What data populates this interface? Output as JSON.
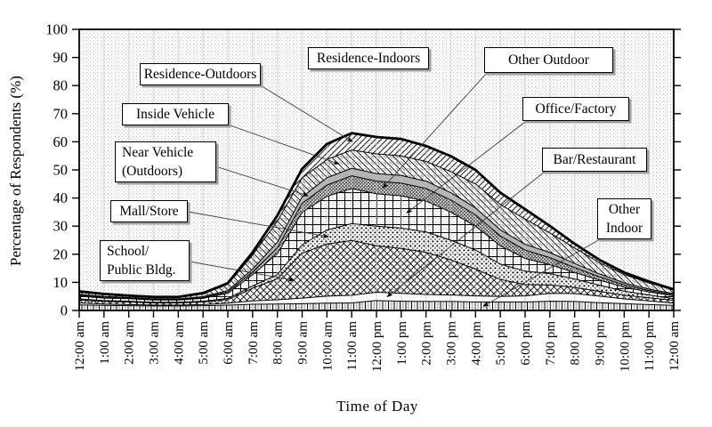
{
  "figure": {
    "y_axis": {
      "label": "Percentage of Respondents (%)",
      "min": 0,
      "max": 100,
      "tick_step": 10
    },
    "x_axis": {
      "label": "Time of Day",
      "tick_labels": [
        "12:00 am",
        "1:00 am",
        "2:00 am",
        "3:00 am",
        "4:00 am",
        "5:00 am",
        "6:00 am",
        "7:00 am",
        "8:00 am",
        "9:00 am",
        "10:00 am",
        "11:00 am",
        "12:00 pm",
        "1:00 pm",
        "2:00 pm",
        "3:00 pm",
        "4:00 pm",
        "5:00 pm",
        "6:00 pm",
        "7:00 pm",
        "8:00 pm",
        "9:00 pm",
        "10:00 pm",
        "11:00 pm",
        "12:00 am"
      ]
    }
  },
  "chart_data": {
    "type": "area",
    "stacked": true,
    "title": "",
    "xlabel": "Time of Day",
    "ylabel": "Percentage of Respondents (%)",
    "ylim": [
      0,
      100
    ],
    "grid": false,
    "x_hours": [
      0,
      1,
      2,
      3,
      4,
      5,
      6,
      7,
      8,
      9,
      10,
      11,
      12,
      13,
      14,
      15,
      16,
      17,
      18,
      19,
      20,
      21,
      22,
      23,
      24
    ],
    "background_region_label": "Residence-Indoors",
    "series": [
      {
        "id": "other_indoor",
        "name": "Other Indoor",
        "pattern": "vertical-lines",
        "values": [
          2.0,
          1.8,
          1.7,
          1.6,
          1.6,
          1.7,
          1.9,
          2.2,
          2.3,
          2.4,
          2.6,
          2.7,
          3.5,
          3.3,
          3.2,
          3.2,
          3.0,
          3.0,
          3.0,
          3.3,
          3.2,
          2.8,
          2.4,
          2.1,
          1.8
        ]
      },
      {
        "id": "bar_restaurant",
        "name": "Bar/Restaurant",
        "pattern": "white",
        "values": [
          0.7,
          0.5,
          0.4,
          0.3,
          0.3,
          0.4,
          0.7,
          1.2,
          1.5,
          2.0,
          2.5,
          2.7,
          3.0,
          2.8,
          2.5,
          2.3,
          2.2,
          2.0,
          2.2,
          2.8,
          2.8,
          2.3,
          1.7,
          1.3,
          0.8
        ]
      },
      {
        "id": "school_public",
        "name": "School/Public Bldg.",
        "pattern": "crosshatch",
        "values": [
          1.0,
          0.9,
          0.9,
          0.8,
          0.8,
          0.9,
          1.3,
          4.5,
          7.5,
          16.0,
          18.5,
          19.5,
          16.5,
          16.0,
          15.0,
          12.5,
          9.5,
          6.0,
          4.0,
          3.0,
          2.2,
          1.7,
          1.3,
          1.1,
          1.0
        ]
      },
      {
        "id": "mall_store",
        "name": "Mall/Store",
        "pattern": "dots",
        "values": [
          0.4,
          0.3,
          0.3,
          0.2,
          0.2,
          0.3,
          0.4,
          0.8,
          1.5,
          3.0,
          5.0,
          6.0,
          7.0,
          7.2,
          7.2,
          7.0,
          6.8,
          5.5,
          4.8,
          4.0,
          3.0,
          2.2,
          1.5,
          1.0,
          0.6
        ]
      },
      {
        "id": "office_factory",
        "name": "Office/Factory",
        "pattern": "grid",
        "values": [
          1.0,
          0.9,
          0.9,
          0.8,
          0.8,
          1.0,
          1.8,
          4.0,
          7.5,
          11.5,
          12.0,
          12.5,
          11.5,
          11.5,
          11.0,
          10.0,
          8.5,
          6.5,
          4.5,
          3.2,
          2.3,
          1.8,
          1.4,
          1.1,
          1.0
        ]
      },
      {
        "id": "other_outdoor",
        "name": "Other Outdoor",
        "pattern": "fine-crosshatch",
        "values": [
          0.3,
          0.3,
          0.2,
          0.2,
          0.2,
          0.3,
          0.5,
          1.0,
          2.0,
          3.2,
          4.0,
          4.5,
          4.5,
          4.5,
          4.5,
          4.3,
          4.0,
          3.5,
          3.0,
          2.5,
          1.8,
          1.2,
          0.8,
          0.5,
          0.4
        ]
      },
      {
        "id": "near_vehicle",
        "name": "Near Vehicle (Outdoors)",
        "pattern": "solid-gray",
        "values": [
          0.3,
          0.3,
          0.2,
          0.2,
          0.2,
          0.3,
          0.5,
          1.0,
          2.0,
          2.3,
          2.6,
          2.7,
          2.7,
          2.7,
          2.6,
          2.6,
          2.5,
          2.2,
          2.0,
          1.8,
          1.4,
          1.0,
          0.7,
          0.5,
          0.4
        ]
      },
      {
        "id": "inside_vehicle",
        "name": "Inside Vehicle",
        "pattern": "diagonal-down",
        "values": [
          0.8,
          0.6,
          0.5,
          0.5,
          0.5,
          1.0,
          2.2,
          5.0,
          7.5,
          6.8,
          6.5,
          6.5,
          7.0,
          7.0,
          7.0,
          7.5,
          8.5,
          9.0,
          9.0,
          7.0,
          5.5,
          4.0,
          3.0,
          2.2,
          1.2
        ]
      },
      {
        "id": "residence_outdoors",
        "name": "Residence-Outdoors",
        "pattern": "diagonal-up",
        "values": [
          0.3,
          0.3,
          0.2,
          0.2,
          0.2,
          0.3,
          0.4,
          1.0,
          2.0,
          3.2,
          5.5,
          6.0,
          6.0,
          6.0,
          5.5,
          5.5,
          5.0,
          4.2,
          3.5,
          2.5,
          1.5,
          1.0,
          0.7,
          0.5,
          0.3
        ]
      }
    ],
    "colors": {
      "line": "#000000",
      "near_vehicle_gray": "#b4b4b4",
      "background_dot": "#999999",
      "gridline": "#c4c4c4"
    }
  },
  "annotations": {
    "residence_outdoors": {
      "label": "Residence-Outdoors"
    },
    "residence_indoors": {
      "label": "Residence-Indoors"
    },
    "other_outdoor": {
      "label": "Other Outdoor"
    },
    "inside_vehicle": {
      "label": "Inside Vehicle"
    },
    "office_factory": {
      "label": "Office/Factory"
    },
    "near_vehicle": {
      "line1": "Near Vehicle",
      "line2": "(Outdoors)"
    },
    "bar_restaurant": {
      "label": "Bar/Restaurant"
    },
    "mall_store": {
      "label": "Mall/Store"
    },
    "other_indoor": {
      "line1": "Other",
      "line2": "Indoor"
    },
    "school_public": {
      "line1": "School/",
      "line2": "Public Bldg."
    }
  }
}
